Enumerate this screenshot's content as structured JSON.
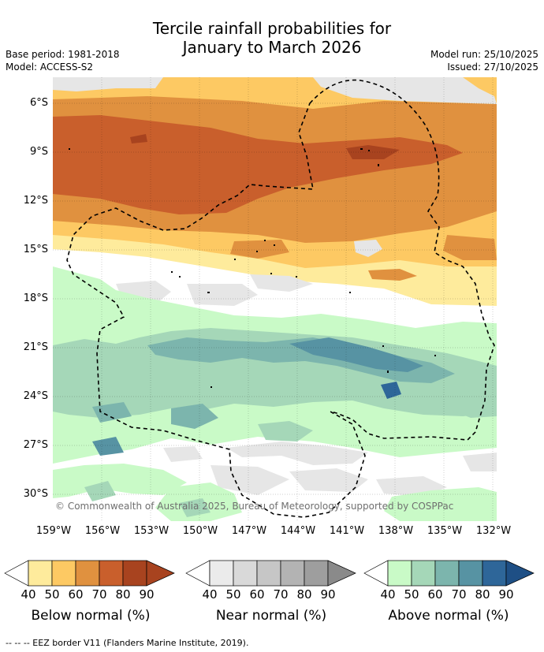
{
  "title": {
    "line1": "Tercile rainfall probabilities for",
    "line2": "January to March 2026"
  },
  "meta": {
    "base_period": "Base period: 1981-2018",
    "model": "Model: ACCESS-S2",
    "model_run": "Model run: 25/10/2025",
    "issued": "Issued: 27/10/2025"
  },
  "map": {
    "lat_labels": [
      "6°S",
      "9°S",
      "12°S",
      "15°S",
      "18°S",
      "21°S",
      "24°S",
      "27°S",
      "30°S"
    ],
    "lon_labels": [
      "159°W",
      "156°W",
      "153°W",
      "150°W",
      "147°W",
      "144°W",
      "141°W",
      "138°W",
      "135°W",
      "132°W"
    ],
    "copyright": "© Commonwealth of Australia 2025, Bureau of Meteorology, supported by COSPPac"
  },
  "colorbars": [
    {
      "title": "Below normal (%)",
      "colors": [
        "#ffffff",
        "#feeb9c",
        "#fdc963",
        "#e0913f",
        "#c95f2c",
        "#a8431f",
        "#a8431f"
      ],
      "ticks": [
        "40",
        "50",
        "60",
        "70",
        "80",
        "90"
      ]
    },
    {
      "title": "Near normal (%)",
      "colors": [
        "#ffffff",
        "#ebebeb",
        "#d9d9d9",
        "#c6c6c6",
        "#b3b3b3",
        "#9e9e9e",
        "#8a8a8a"
      ],
      "ticks": [
        "40",
        "50",
        "60",
        "70",
        "80",
        "90"
      ]
    },
    {
      "title": "Above normal (%)",
      "colors": [
        "#ffffff",
        "#c9fac7",
        "#a5d7b8",
        "#7cb5ad",
        "#5793a3",
        "#2e6699",
        "#1e4f85"
      ],
      "ticks": [
        "40",
        "50",
        "60",
        "70",
        "80",
        "90"
      ]
    }
  ],
  "footer": "-- -- -- EEZ border V11 (Flanders Marine Institute, 2019)."
}
